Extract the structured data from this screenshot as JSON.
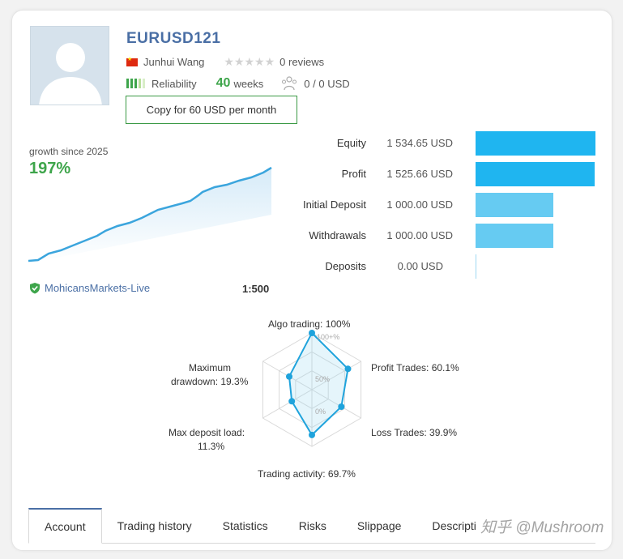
{
  "profile": {
    "title": "EURUSD121",
    "author": "Junhui Wang",
    "reviews": "0 reviews",
    "reliability_label": "Reliability",
    "weeks_value": "40",
    "weeks_label": "weeks",
    "subscribers": "0 / 0 USD",
    "copy_button": "Copy for 60 USD per month"
  },
  "growth": {
    "label": "growth since 2025",
    "value": "197%"
  },
  "account": {
    "broker": "MohicansMarkets-Live",
    "leverage": "1:500"
  },
  "stats": [
    {
      "label": "Equity",
      "value": "1 534.65 USD",
      "amount": 1534.65
    },
    {
      "label": "Profit",
      "value": "1 525.66 USD",
      "amount": 1525.66
    },
    {
      "label": "Initial Deposit",
      "value": "1 000.00 USD",
      "amount": 1000.0
    },
    {
      "label": "Withdrawals",
      "value": "1 000.00 USD",
      "amount": 1000.0
    },
    {
      "label": "Deposits",
      "value": "0.00 USD",
      "amount": 0
    }
  ],
  "radar": {
    "algo": "Algo trading: 100%",
    "profit_trades": "Profit Trades: 60.1%",
    "loss_trades": "Loss Trades: 39.9%",
    "activity": "Trading activity: 69.7%",
    "deposit_load": "Max deposit load:",
    "deposit_load_val": "11.3%",
    "drawdown": "Maximum",
    "drawdown2": "drawdown: 19.3%",
    "tick_100": "100+%",
    "tick_50": "50%",
    "tick_0": "0%",
    "values": [
      100,
      60.1,
      39.9,
      69.7,
      11.3,
      19.3
    ]
  },
  "tabs": [
    "Account",
    "Trading history",
    "Statistics",
    "Risks",
    "Slippage",
    "Descripti"
  ],
  "watermark": "知乎 @Mushroom",
  "colors": {
    "accent": "#4a6fa5",
    "green": "#3ea54b",
    "bar_dark": "#1fb5f0",
    "bar_light": "#66cbf2"
  }
}
